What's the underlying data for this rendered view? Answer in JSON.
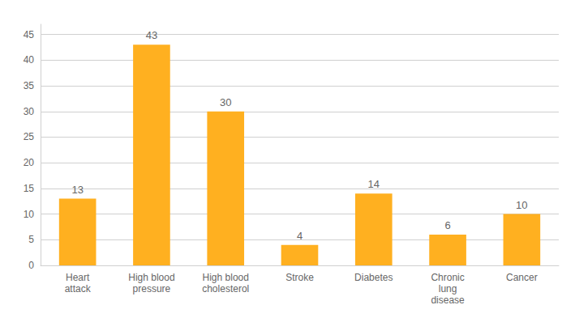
{
  "chart_data": {
    "type": "bar",
    "categories": [
      "Heart\nattack",
      "High blood\npressure",
      "High blood\ncholesterol",
      "Stroke",
      "Diabetes",
      "Chronic\nlung\ndisease",
      "Cancer"
    ],
    "values": [
      13,
      43,
      30,
      4,
      14,
      6,
      10
    ],
    "color": "#FFB020",
    "ylim": [
      0,
      47
    ],
    "yticks": [
      0,
      5,
      10,
      15,
      20,
      25,
      30,
      35,
      40,
      45
    ],
    "grid": true,
    "data_labels": true
  }
}
